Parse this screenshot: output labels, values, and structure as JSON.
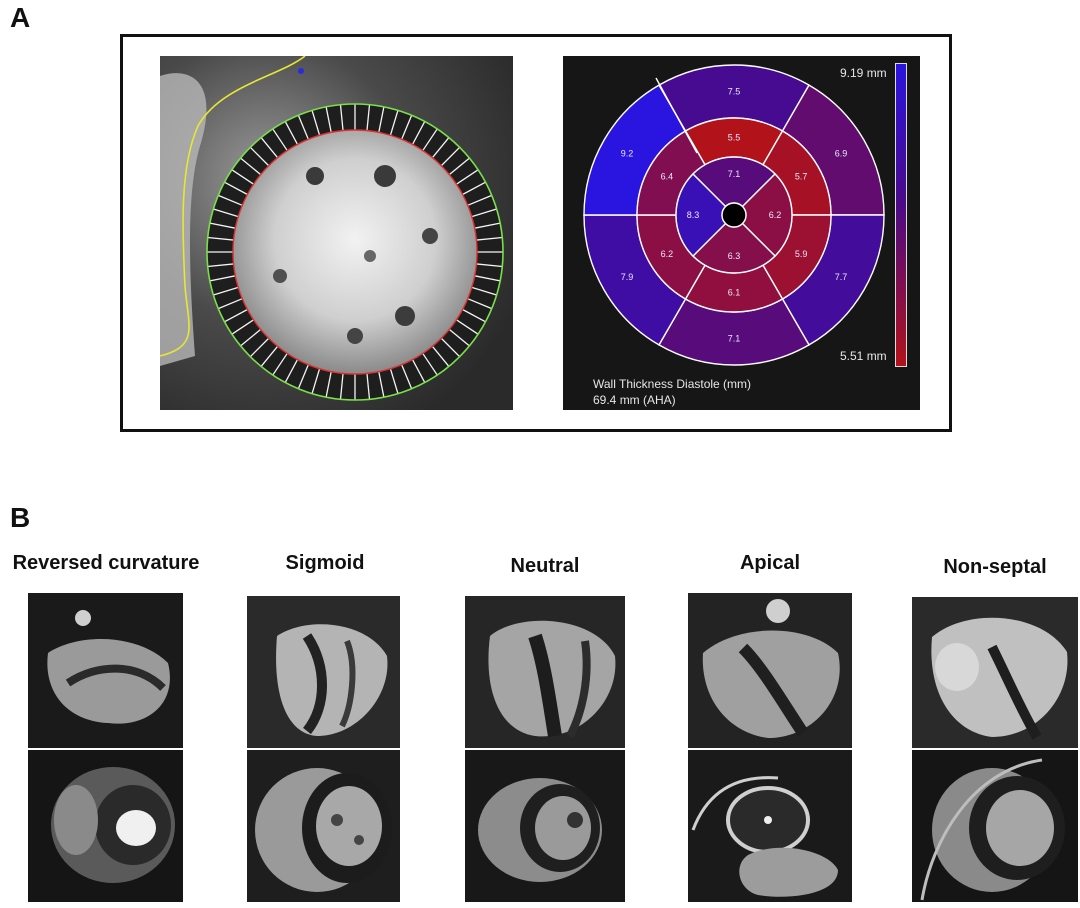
{
  "panels": {
    "a_label": "A",
    "b_label": "B"
  },
  "bullseye": {
    "max_label": "9.19 mm",
    "min_label": "5.51 mm",
    "caption_line1": "Wall Thickness Diastole (mm)",
    "caption_line2": "69.4 mm (AHA)",
    "segments": {
      "s1": "7.5",
      "s2": "6.9",
      "s3": "7.7",
      "s4": "7.1",
      "s5": "7.9",
      "s6": "9.2",
      "s7": "5.5",
      "s8": "5.7",
      "s9": "5.9",
      "s10": "6.1",
      "s11": "6.2",
      "s12": "6.4",
      "s13": "7.1",
      "s14": "6.2",
      "s15": "6.3",
      "s16": "8.3"
    },
    "colors": {
      "high": "#2a14e0",
      "mid": "#4a0a8a",
      "low": "#b2121a"
    }
  },
  "cases": [
    {
      "title": "Reversed curvature"
    },
    {
      "title": "Sigmoid"
    },
    {
      "title": "Neutral"
    },
    {
      "title": "Apical"
    },
    {
      "title": "Non-septal"
    }
  ]
}
